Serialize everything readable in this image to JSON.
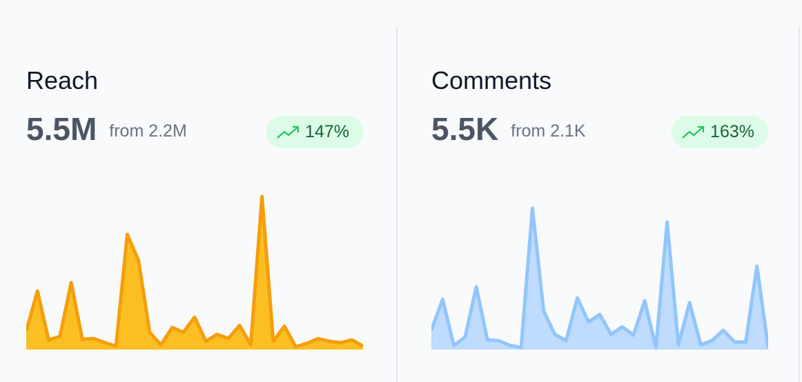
{
  "cards": [
    {
      "title": "Reach",
      "value": "5.5M",
      "from": "from 2.2M",
      "change": "147%",
      "chart_data": {
        "type": "area",
        "stroke": "#f59e0b",
        "fill": "#fbbf24",
        "values": [
          27,
          85,
          14,
          19,
          97,
          15,
          16,
          10,
          5,
          167,
          129,
          25,
          7,
          32,
          25,
          47,
          12,
          22,
          16,
          35,
          7,
          222,
          12,
          34,
          4,
          9,
          16,
          12,
          10,
          14,
          5
        ]
      }
    },
    {
      "title": "Comments",
      "value": "5.5K",
      "from": "from 2.1K",
      "change": "163%",
      "chart_data": {
        "type": "area",
        "stroke": "#93c5fd",
        "fill": "#bfdbfe",
        "values": [
          28,
          73,
          6,
          18,
          91,
          14,
          13,
          6,
          3,
          205,
          56,
          22,
          13,
          75,
          40,
          51,
          22,
          33,
          21,
          71,
          3,
          185,
          7,
          68,
          7,
          13,
          28,
          11,
          11,
          121,
          3
        ]
      }
    }
  ]
}
